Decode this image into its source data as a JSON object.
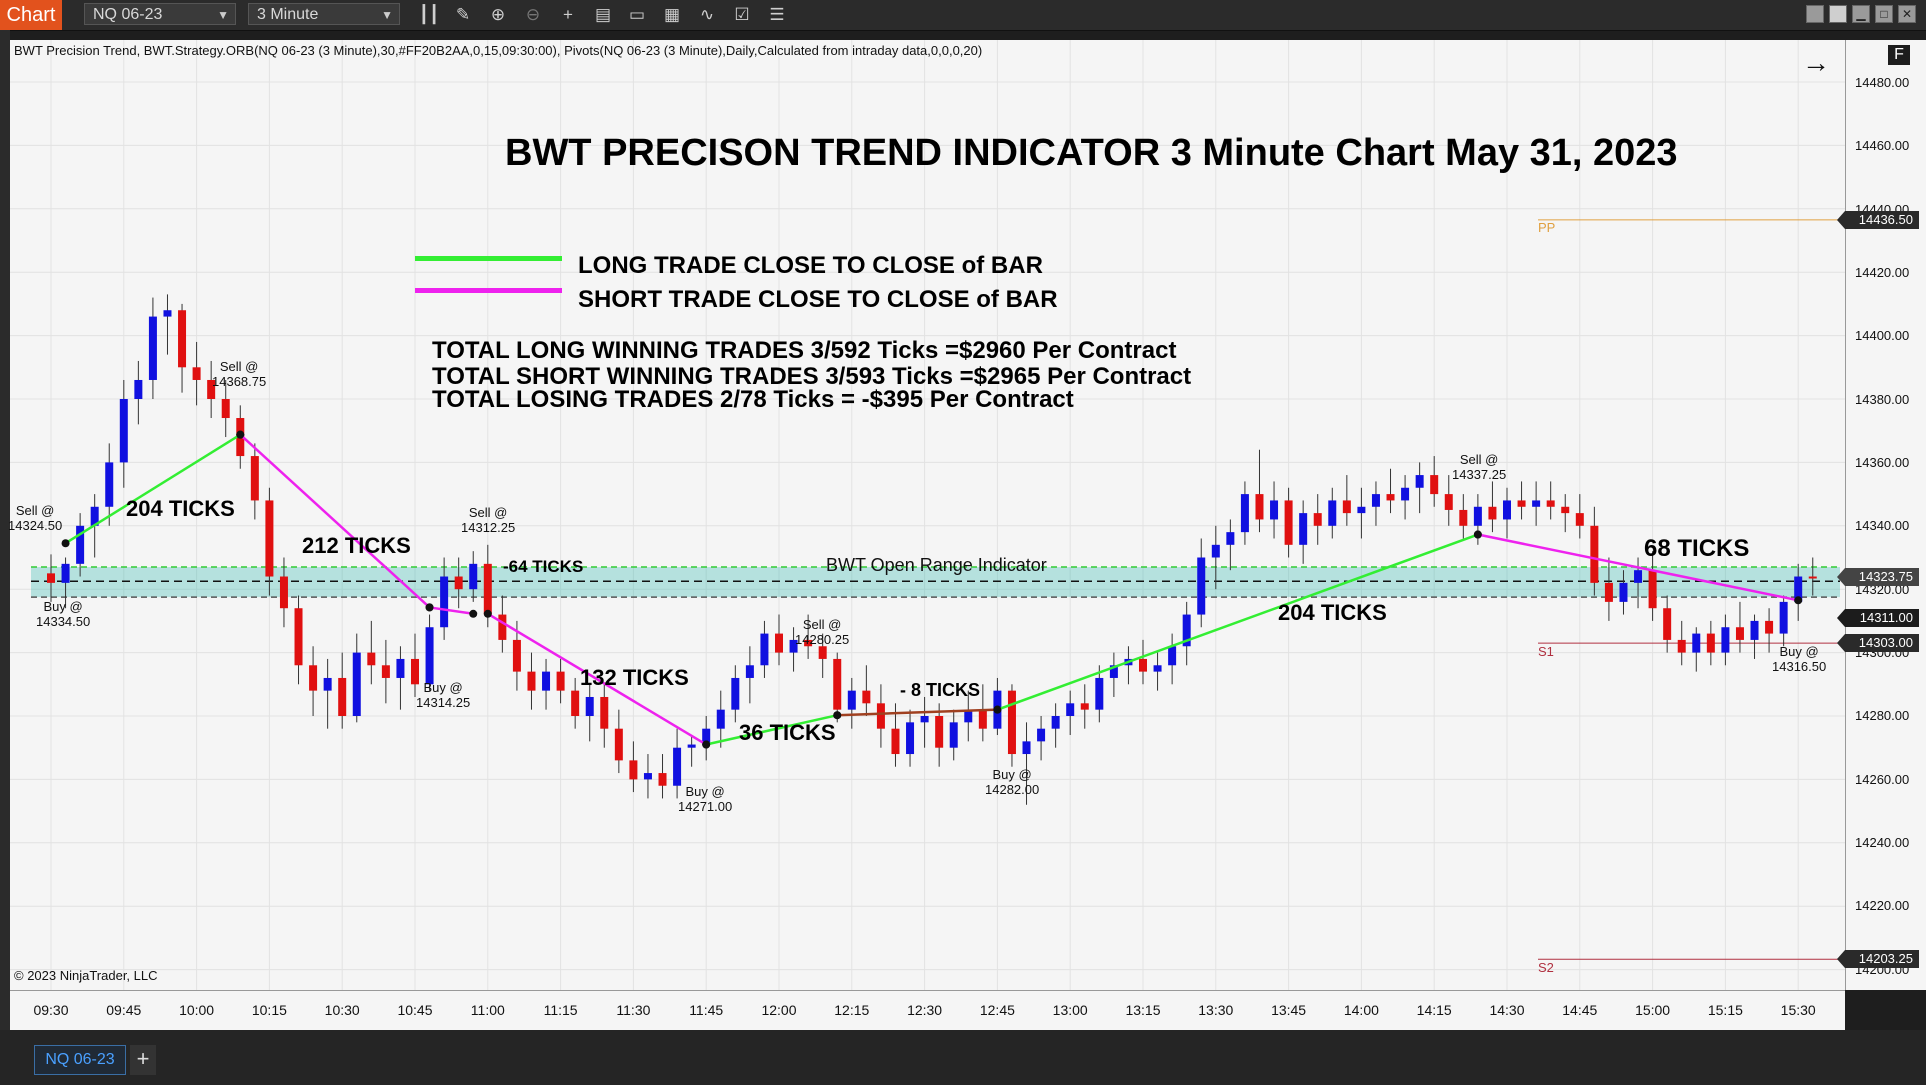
{
  "toolbar": {
    "chart_tab": "Chart",
    "instrument": "NQ 06-23",
    "interval": "3 Minute",
    "icons": [
      "bar-style-icon",
      "draw-icon",
      "zoom-in-icon",
      "zoom-out-icon",
      "crosshair-icon",
      "data-box-icon",
      "window-icon",
      "strategy-icon",
      "indicator-icon",
      "properties-icon",
      "list-icon"
    ]
  },
  "indicator_line": "BWT Precision Trend, BWT.Strategy.ORB(NQ 06-23 (3 Minute),30,#FF20B2AA,0,15,09:30:00), Pivots(NQ 06-23 (3 Minute),Daily,Calculated from intraday data,0,0,0,20)",
  "f_button": "F",
  "copyright": "© 2023 NinjaTrader, LLC",
  "title": "BWT PRECISON TREND INDICATOR 3 Minute Chart May 31, 2023",
  "legend": {
    "long": {
      "label": "LONG TRADE CLOSE TO CLOSE of BAR",
      "color": "#33ee33"
    },
    "short": {
      "label": "SHORT TRADE CLOSE TO CLOSE of BAR",
      "color": "#ee22ee"
    }
  },
  "stats": [
    "TOTAL LONG  WINNING TRADES  3/592 Ticks  =$2960 Per Contract",
    "TOTAL SHORT  WINNING TRADES  3/593 Ticks  =$2965 Per Contract",
    "TOTAL LOSING TRADES  2/78 Ticks  = -$395 Per Contract"
  ],
  "orb_label": "BWT Open Range Indicator",
  "pivots": {
    "pp": "PP",
    "s1": "S1",
    "s2": "S2"
  },
  "y_ticks": [
    "14480.00",
    "14460.00",
    "14440.00",
    "14420.00",
    "14400.00",
    "14380.00",
    "14360.00",
    "14340.00",
    "14320.00",
    "14300.00",
    "14280.00",
    "14260.00",
    "14240.00",
    "14220.00",
    "14200.00"
  ],
  "y_badges": [
    "14436.50",
    "14323.75",
    "14311.00",
    "14303.00",
    "14203.25"
  ],
  "x_ticks": [
    "09:30",
    "09:45",
    "10:00",
    "10:15",
    "10:30",
    "10:45",
    "11:00",
    "11:15",
    "11:30",
    "11:45",
    "12:00",
    "12:15",
    "12:30",
    "12:45",
    "13:00",
    "13:15",
    "13:30",
    "13:45",
    "14:00",
    "14:15",
    "14:30",
    "14:45",
    "15:00",
    "15:15",
    "15:30"
  ],
  "tick_labels": [
    "204 TICKS",
    "212 TICKS",
    "-64 TICKS",
    "132 TICKS",
    "36 TICKS",
    "- 8 TICKS",
    "204 TICKS",
    "68 TICKS"
  ],
  "trade_annotations": [
    {
      "line1": "Sell @",
      "line2": "14324.50"
    },
    {
      "line1": "Buy @",
      "line2": "14334.50"
    },
    {
      "line1": "Sell @",
      "line2": "14368.75"
    },
    {
      "line1": "Sell @",
      "line2": "14312.25"
    },
    {
      "line1": "Buy @",
      "line2": "14314.25"
    },
    {
      "line1": "Buy @",
      "line2": "14271.00"
    },
    {
      "line1": "Sell @",
      "line2": "14280.25"
    },
    {
      "line1": "Buy @",
      "line2": "14282.00"
    },
    {
      "line1": "Sell @",
      "line2": "14337.25"
    },
    {
      "line1": "Buy @",
      "line2": "14316.50"
    }
  ],
  "bottom_tab": "NQ 06-23",
  "bottom_plus": "+",
  "chart_data": {
    "type": "candlestick",
    "instrument": "NQ 06-23",
    "interval": "3 Minute",
    "ylim": [
      14195,
      14490
    ],
    "x_range": [
      "09:27",
      "15:36"
    ],
    "candles": [
      {
        "t": "09:30",
        "o": 14325,
        "h": 14331,
        "l": 14316,
        "c": 14322
      },
      {
        "t": "09:33",
        "o": 14322,
        "h": 14330,
        "l": 14314,
        "c": 14328
      },
      {
        "t": "09:36",
        "o": 14328,
        "h": 14344,
        "l": 14324,
        "c": 14340
      },
      {
        "t": "09:39",
        "o": 14340,
        "h": 14350,
        "l": 14330,
        "c": 14346
      },
      {
        "t": "09:42",
        "o": 14346,
        "h": 14366,
        "l": 14340,
        "c": 14360
      },
      {
        "t": "09:45",
        "o": 14360,
        "h": 14386,
        "l": 14352,
        "c": 14380
      },
      {
        "t": "09:48",
        "o": 14380,
        "h": 14392,
        "l": 14372,
        "c": 14386
      },
      {
        "t": "09:51",
        "o": 14386,
        "h": 14412,
        "l": 14380,
        "c": 14406
      },
      {
        "t": "09:54",
        "o": 14406,
        "h": 14413,
        "l": 14394,
        "c": 14408
      },
      {
        "t": "09:57",
        "o": 14408,
        "h": 14410,
        "l": 14382,
        "c": 14390
      },
      {
        "t": "10:00",
        "o": 14390,
        "h": 14398,
        "l": 14378,
        "c": 14386
      },
      {
        "t": "10:03",
        "o": 14386,
        "h": 14392,
        "l": 14374,
        "c": 14380
      },
      {
        "t": "10:06",
        "o": 14380,
        "h": 14386,
        "l": 14368,
        "c": 14374
      },
      {
        "t": "10:09",
        "o": 14374,
        "h": 14378,
        "l": 14358,
        "c": 14362
      },
      {
        "t": "10:12",
        "o": 14362,
        "h": 14366,
        "l": 14342,
        "c": 14348
      },
      {
        "t": "10:15",
        "o": 14348,
        "h": 14352,
        "l": 14318,
        "c": 14324
      },
      {
        "t": "10:18",
        "o": 14324,
        "h": 14330,
        "l": 14308,
        "c": 14314
      },
      {
        "t": "10:21",
        "o": 14314,
        "h": 14318,
        "l": 14290,
        "c": 14296
      },
      {
        "t": "10:24",
        "o": 14296,
        "h": 14302,
        "l": 14280,
        "c": 14288
      },
      {
        "t": "10:27",
        "o": 14288,
        "h": 14298,
        "l": 14276,
        "c": 14292
      },
      {
        "t": "10:30",
        "o": 14292,
        "h": 14300,
        "l": 14276,
        "c": 14280
      },
      {
        "t": "10:33",
        "o": 14280,
        "h": 14306,
        "l": 14278,
        "c": 14300
      },
      {
        "t": "10:36",
        "o": 14300,
        "h": 14310,
        "l": 14290,
        "c": 14296
      },
      {
        "t": "10:39",
        "o": 14296,
        "h": 14304,
        "l": 14284,
        "c": 14292
      },
      {
        "t": "10:42",
        "o": 14292,
        "h": 14302,
        "l": 14282,
        "c": 14298
      },
      {
        "t": "10:45",
        "o": 14298,
        "h": 14306,
        "l": 14286,
        "c": 14290
      },
      {
        "t": "10:48",
        "o": 14290,
        "h": 14312,
        "l": 14288,
        "c": 14308
      },
      {
        "t": "10:51",
        "o": 14308,
        "h": 14330,
        "l": 14304,
        "c": 14324
      },
      {
        "t": "10:54",
        "o": 14324,
        "h": 14330,
        "l": 14314,
        "c": 14320
      },
      {
        "t": "10:57",
        "o": 14320,
        "h": 14332,
        "l": 14316,
        "c": 14328
      },
      {
        "t": "11:00",
        "o": 14328,
        "h": 14334,
        "l": 14308,
        "c": 14312
      },
      {
        "t": "11:03",
        "o": 14312,
        "h": 14318,
        "l": 14300,
        "c": 14304
      },
      {
        "t": "11:06",
        "o": 14304,
        "h": 14310,
        "l": 14288,
        "c": 14294
      },
      {
        "t": "11:09",
        "o": 14294,
        "h": 14300,
        "l": 14282,
        "c": 14288
      },
      {
        "t": "11:12",
        "o": 14288,
        "h": 14298,
        "l": 14282,
        "c": 14294
      },
      {
        "t": "11:15",
        "o": 14294,
        "h": 14298,
        "l": 14284,
        "c": 14288
      },
      {
        "t": "11:18",
        "o": 14288,
        "h": 14292,
        "l": 14276,
        "c": 14280
      },
      {
        "t": "11:21",
        "o": 14280,
        "h": 14290,
        "l": 14272,
        "c": 14286
      },
      {
        "t": "11:24",
        "o": 14286,
        "h": 14290,
        "l": 14270,
        "c": 14276
      },
      {
        "t": "11:27",
        "o": 14276,
        "h": 14282,
        "l": 14262,
        "c": 14266
      },
      {
        "t": "11:30",
        "o": 14266,
        "h": 14272,
        "l": 14256,
        "c": 14260
      },
      {
        "t": "11:33",
        "o": 14260,
        "h": 14268,
        "l": 14254,
        "c": 14262
      },
      {
        "t": "11:36",
        "o": 14262,
        "h": 14268,
        "l": 14254,
        "c": 14258
      },
      {
        "t": "11:39",
        "o": 14258,
        "h": 14276,
        "l": 14254,
        "c": 14270
      },
      {
        "t": "11:42",
        "o": 14270,
        "h": 14274,
        "l": 14264,
        "c": 14271
      },
      {
        "t": "11:45",
        "o": 14271,
        "h": 14280,
        "l": 14266,
        "c": 14276
      },
      {
        "t": "11:48",
        "o": 14276,
        "h": 14288,
        "l": 14270,
        "c": 14282
      },
      {
        "t": "11:51",
        "o": 14282,
        "h": 14296,
        "l": 14278,
        "c": 14292
      },
      {
        "t": "11:54",
        "o": 14292,
        "h": 14302,
        "l": 14284,
        "c": 14296
      },
      {
        "t": "11:57",
        "o": 14296,
        "h": 14310,
        "l": 14292,
        "c": 14306
      },
      {
        "t": "12:00",
        "o": 14306,
        "h": 14312,
        "l": 14296,
        "c": 14300
      },
      {
        "t": "12:03",
        "o": 14300,
        "h": 14308,
        "l": 14294,
        "c": 14304
      },
      {
        "t": "12:06",
        "o": 14304,
        "h": 14312,
        "l": 14298,
        "c": 14302
      },
      {
        "t": "12:09",
        "o": 14302,
        "h": 14306,
        "l": 14292,
        "c": 14298
      },
      {
        "t": "12:12",
        "o": 14298,
        "h": 14300,
        "l": 14278,
        "c": 14282
      },
      {
        "t": "12:15",
        "o": 14282,
        "h": 14292,
        "l": 14276,
        "c": 14288
      },
      {
        "t": "12:18",
        "o": 14288,
        "h": 14296,
        "l": 14280,
        "c": 14284
      },
      {
        "t": "12:21",
        "o": 14284,
        "h": 14290,
        "l": 14270,
        "c": 14276
      },
      {
        "t": "12:24",
        "o": 14276,
        "h": 14284,
        "l": 14264,
        "c": 14268
      },
      {
        "t": "12:27",
        "o": 14268,
        "h": 14282,
        "l": 14264,
        "c": 14278
      },
      {
        "t": "12:30",
        "o": 14278,
        "h": 14286,
        "l": 14270,
        "c": 14280
      },
      {
        "t": "12:33",
        "o": 14280,
        "h": 14284,
        "l": 14264,
        "c": 14270
      },
      {
        "t": "12:36",
        "o": 14270,
        "h": 14282,
        "l": 14266,
        "c": 14278
      },
      {
        "t": "12:39",
        "o": 14278,
        "h": 14288,
        "l": 14272,
        "c": 14282
      },
      {
        "t": "12:42",
        "o": 14282,
        "h": 14290,
        "l": 14272,
        "c": 14276
      },
      {
        "t": "12:45",
        "o": 14276,
        "h": 14292,
        "l": 14274,
        "c": 14288
      },
      {
        "t": "12:48",
        "o": 14288,
        "h": 14290,
        "l": 14264,
        "c": 14268
      },
      {
        "t": "12:51",
        "o": 14268,
        "h": 14278,
        "l": 14252,
        "c": 14272
      },
      {
        "t": "12:54",
        "o": 14272,
        "h": 14280,
        "l": 14266,
        "c": 14276
      },
      {
        "t": "12:57",
        "o": 14276,
        "h": 14284,
        "l": 14270,
        "c": 14280
      },
      {
        "t": "13:00",
        "o": 14280,
        "h": 14288,
        "l": 14274,
        "c": 14284
      },
      {
        "t": "13:03",
        "o": 14284,
        "h": 14290,
        "l": 14276,
        "c": 14282
      },
      {
        "t": "13:06",
        "o": 14282,
        "h": 14296,
        "l": 14278,
        "c": 14292
      },
      {
        "t": "13:09",
        "o": 14292,
        "h": 14300,
        "l": 14286,
        "c": 14296
      },
      {
        "t": "13:12",
        "o": 14296,
        "h": 14302,
        "l": 14290,
        "c": 14298
      },
      {
        "t": "13:15",
        "o": 14298,
        "h": 14304,
        "l": 14290,
        "c": 14294
      },
      {
        "t": "13:18",
        "o": 14294,
        "h": 14300,
        "l": 14288,
        "c": 14296
      },
      {
        "t": "13:21",
        "o": 14296,
        "h": 14306,
        "l": 14290,
        "c": 14302
      },
      {
        "t": "13:24",
        "o": 14302,
        "h": 14316,
        "l": 14296,
        "c": 14312
      },
      {
        "t": "13:27",
        "o": 14312,
        "h": 14336,
        "l": 14308,
        "c": 14330
      },
      {
        "t": "13:30",
        "o": 14330,
        "h": 14340,
        "l": 14320,
        "c": 14334
      },
      {
        "t": "13:33",
        "o": 14334,
        "h": 14342,
        "l": 14326,
        "c": 14338
      },
      {
        "t": "13:36",
        "o": 14338,
        "h": 14354,
        "l": 14334,
        "c": 14350
      },
      {
        "t": "13:39",
        "o": 14350,
        "h": 14364,
        "l": 14338,
        "c": 14342
      },
      {
        "t": "13:42",
        "o": 14342,
        "h": 14354,
        "l": 14336,
        "c": 14348
      },
      {
        "t": "13:45",
        "o": 14348,
        "h": 14352,
        "l": 14330,
        "c": 14334
      },
      {
        "t": "13:48",
        "o": 14334,
        "h": 14348,
        "l": 14328,
        "c": 14344
      },
      {
        "t": "13:51",
        "o": 14344,
        "h": 14350,
        "l": 14334,
        "c": 14340
      },
      {
        "t": "13:54",
        "o": 14340,
        "h": 14352,
        "l": 14336,
        "c": 14348
      },
      {
        "t": "13:57",
        "o": 14348,
        "h": 14356,
        "l": 14340,
        "c": 14344
      },
      {
        "t": "14:00",
        "o": 14344,
        "h": 14352,
        "l": 14336,
        "c": 14346
      },
      {
        "t": "14:03",
        "o": 14346,
        "h": 14354,
        "l": 14340,
        "c": 14350
      },
      {
        "t": "14:06",
        "o": 14350,
        "h": 14358,
        "l": 14344,
        "c": 14348
      },
      {
        "t": "14:09",
        "o": 14348,
        "h": 14356,
        "l": 14342,
        "c": 14352
      },
      {
        "t": "14:12",
        "o": 14352,
        "h": 14360,
        "l": 14344,
        "c": 14356
      },
      {
        "t": "14:15",
        "o": 14356,
        "h": 14362,
        "l": 14346,
        "c": 14350
      },
      {
        "t": "14:18",
        "o": 14350,
        "h": 14356,
        "l": 14340,
        "c": 14345
      },
      {
        "t": "14:21",
        "o": 14345,
        "h": 14350,
        "l": 14336,
        "c": 14340
      },
      {
        "t": "14:24",
        "o": 14340,
        "h": 14350,
        "l": 14334,
        "c": 14346
      },
      {
        "t": "14:27",
        "o": 14346,
        "h": 14354,
        "l": 14338,
        "c": 14342
      },
      {
        "t": "14:30",
        "o": 14342,
        "h": 14352,
        "l": 14336,
        "c": 14348
      },
      {
        "t": "14:33",
        "o": 14348,
        "h": 14354,
        "l": 14342,
        "c": 14346
      },
      {
        "t": "14:36",
        "o": 14346,
        "h": 14354,
        "l": 14340,
        "c": 14348
      },
      {
        "t": "14:39",
        "o": 14348,
        "h": 14354,
        "l": 14342,
        "c": 14346
      },
      {
        "t": "14:42",
        "o": 14346,
        "h": 14350,
        "l": 14338,
        "c": 14344
      },
      {
        "t": "14:45",
        "o": 14344,
        "h": 14350,
        "l": 14336,
        "c": 14340
      },
      {
        "t": "14:48",
        "o": 14340,
        "h": 14346,
        "l": 14318,
        "c": 14322
      },
      {
        "t": "14:51",
        "o": 14322,
        "h": 14330,
        "l": 14310,
        "c": 14316
      },
      {
        "t": "14:54",
        "o": 14316,
        "h": 14326,
        "l": 14312,
        "c": 14322
      },
      {
        "t": "14:57",
        "o": 14322,
        "h": 14330,
        "l": 14314,
        "c": 14326
      },
      {
        "t": "15:00",
        "o": 14326,
        "h": 14332,
        "l": 14310,
        "c": 14314
      },
      {
        "t": "15:03",
        "o": 14314,
        "h": 14318,
        "l": 14300,
        "c": 14304
      },
      {
        "t": "15:06",
        "o": 14304,
        "h": 14310,
        "l": 14296,
        "c": 14300
      },
      {
        "t": "15:09",
        "o": 14300,
        "h": 14308,
        "l": 14294,
        "c": 14306
      },
      {
        "t": "15:12",
        "o": 14306,
        "h": 14310,
        "l": 14296,
        "c": 14300
      },
      {
        "t": "15:15",
        "o": 14300,
        "h": 14312,
        "l": 14296,
        "c": 14308
      },
      {
        "t": "15:18",
        "o": 14308,
        "h": 14316,
        "l": 14300,
        "c": 14304
      },
      {
        "t": "15:21",
        "o": 14304,
        "h": 14312,
        "l": 14298,
        "c": 14310
      },
      {
        "t": "15:24",
        "o": 14310,
        "h": 14314,
        "l": 14300,
        "c": 14306
      },
      {
        "t": "15:27",
        "o": 14306,
        "h": 14318,
        "l": 14302,
        "c": 14316
      },
      {
        "t": "15:30",
        "o": 14316,
        "h": 14328,
        "l": 14310,
        "c": 14324
      },
      {
        "t": "15:33",
        "o": 14324,
        "h": 14330,
        "l": 14318,
        "c": 14323.75
      }
    ],
    "trade_lines": [
      {
        "type": "long",
        "from": {
          "t": "09:33",
          "p": 14334.5
        },
        "to": {
          "t": "10:09",
          "p": 14368.75
        }
      },
      {
        "type": "short",
        "from": {
          "t": "10:09",
          "p": 14368.75
        },
        "to": {
          "t": "10:48",
          "p": 14314.25
        }
      },
      {
        "type": "short",
        "from": {
          "t": "10:57",
          "p": 14312.25
        },
        "to": {
          "t": "10:48",
          "p": 14314.25
        }
      },
      {
        "type": "short",
        "from": {
          "t": "11:00",
          "p": 14312.25
        },
        "to": {
          "t": "11:45",
          "p": 14271
        }
      },
      {
        "type": "long",
        "from": {
          "t": "11:45",
          "p": 14271
        },
        "to": {
          "t": "12:12",
          "p": 14280.25
        }
      },
      {
        "type": "loss",
        "from": {
          "t": "12:12",
          "p": 14280.25
        },
        "to": {
          "t": "12:45",
          "p": 14282
        }
      },
      {
        "type": "long",
        "from": {
          "t": "12:45",
          "p": 14282
        },
        "to": {
          "t": "14:24",
          "p": 14337.25
        }
      },
      {
        "type": "short",
        "from": {
          "t": "14:24",
          "p": 14337.25
        },
        "to": {
          "t": "15:30",
          "p": 14316.5
        }
      }
    ],
    "orb": {
      "high": 14327,
      "low": 14317.5,
      "mid": 14322.5
    },
    "pivot_levels": {
      "PP": 14436.5,
      "S1": 14303,
      "S2": 14203.25
    }
  }
}
